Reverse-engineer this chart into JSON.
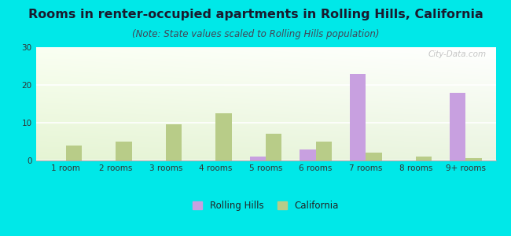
{
  "title": "Rooms in renter-occupied apartments in Rolling Hills, California",
  "subtitle": "(Note: State values scaled to Rolling Hills population)",
  "categories": [
    "1 room",
    "2 rooms",
    "3 rooms",
    "4 rooms",
    "5 rooms",
    "6 rooms",
    "7 rooms",
    "8 rooms",
    "9+ rooms"
  ],
  "rolling_hills": [
    0,
    0,
    0,
    0,
    1,
    3,
    23,
    0,
    18
  ],
  "california": [
    4,
    5,
    9.5,
    12.5,
    7,
    5,
    2,
    1,
    0.7
  ],
  "rolling_hills_color": "#c8a0e0",
  "california_color": "#b8cc88",
  "background_color": "#00e8e8",
  "ylim": [
    0,
    30
  ],
  "yticks": [
    0,
    10,
    20,
    30
  ],
  "bar_width": 0.32,
  "title_fontsize": 11.5,
  "subtitle_fontsize": 8.5,
  "tick_fontsize": 7.5,
  "legend_fontsize": 8.5,
  "watermark_text": "City-Data.com"
}
